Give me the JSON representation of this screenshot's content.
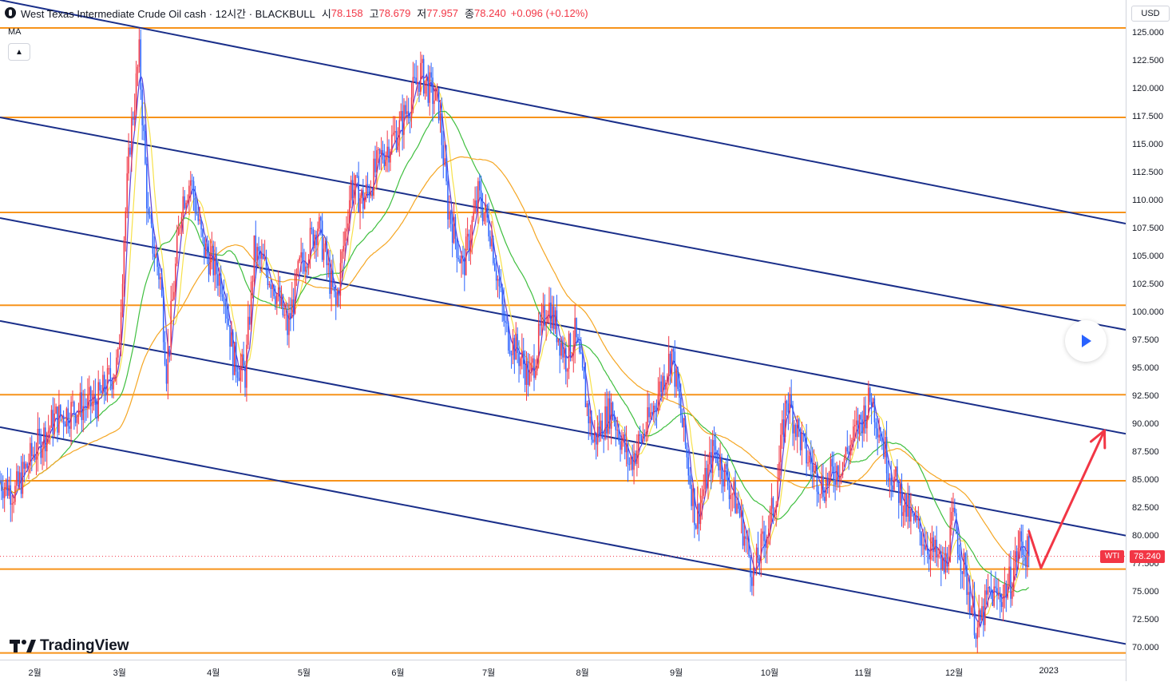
{
  "header": {
    "title": "West Texas Intermediate Crude Oil cash · 12시간 · BLACKBULL",
    "open_key": "시",
    "open": "78.158",
    "high_key": "고",
    "high": "78.679",
    "low_key": "저",
    "low": "77.957",
    "close_key": "종",
    "close": "78.240",
    "change": "+0.096 (+0.12%)"
  },
  "indicator_label": "MA",
  "currency": "USD",
  "symbol_tag": "WTI",
  "last_price_label": "78.240",
  "brand": "TradingView",
  "chart_data": {
    "type": "candlestick",
    "symbol": "WTI",
    "interval": "12시간",
    "last_price": 78.24,
    "y_range": [
      69,
      128
    ],
    "y_ticks": [
      70,
      72.5,
      75,
      77.5,
      80,
      82.5,
      85,
      87.5,
      90,
      92.5,
      95,
      97.5,
      100,
      102.5,
      105,
      107.5,
      110,
      112.5,
      115,
      117.5,
      120,
      122.5,
      125
    ],
    "y_tick_labels": [
      "70.000",
      "72.500",
      "75.000",
      "77.500",
      "80.000",
      "82.500",
      "85.000",
      "87.500",
      "90.000",
      "92.500",
      "95.000",
      "97.500",
      "100.000",
      "102.500",
      "105.000",
      "107.500",
      "110.000",
      "112.500",
      "115.000",
      "117.500",
      "120.000",
      "122.500",
      "125.000"
    ],
    "x_range": [
      "2022-01-20",
      "2023-01-27"
    ],
    "x_ticks": [
      {
        "label": "2월",
        "date": "2022-02-01"
      },
      {
        "label": "3월",
        "date": "2022-03-01"
      },
      {
        "label": "4월",
        "date": "2022-04-01"
      },
      {
        "label": "5월",
        "date": "2022-05-01"
      },
      {
        "label": "6월",
        "date": "2022-06-01"
      },
      {
        "label": "7월",
        "date": "2022-07-01"
      },
      {
        "label": "8월",
        "date": "2022-08-01"
      },
      {
        "label": "9월",
        "date": "2022-09-01"
      },
      {
        "label": "10월",
        "date": "2022-10-01"
      },
      {
        "label": "11월",
        "date": "2022-11-01"
      },
      {
        "label": "12월",
        "date": "2022-12-01"
      },
      {
        "label": "2023",
        "date": "2023-01-01"
      }
    ],
    "price_path": [
      [
        "2022-01-20",
        85.0
      ],
      [
        "2022-01-25",
        84.0
      ],
      [
        "2022-01-31",
        87.5
      ],
      [
        "2022-02-07",
        90.5
      ],
      [
        "2022-02-14",
        91.5
      ],
      [
        "2022-02-21",
        92.0
      ],
      [
        "2022-02-24",
        93.5
      ],
      [
        "2022-02-28",
        95.5
      ],
      [
        "2022-03-02",
        107.0
      ],
      [
        "2022-03-04",
        115.5
      ],
      [
        "2022-03-07",
        123.0
      ],
      [
        "2022-03-10",
        108.0
      ],
      [
        "2022-03-14",
        103.0
      ],
      [
        "2022-03-16",
        95.0
      ],
      [
        "2022-03-21",
        110.0
      ],
      [
        "2022-03-24",
        112.0
      ],
      [
        "2022-03-28",
        106.0
      ],
      [
        "2022-04-04",
        102.5
      ],
      [
        "2022-04-07",
        96.0
      ],
      [
        "2022-04-11",
        94.5
      ],
      [
        "2022-04-14",
        105.5
      ],
      [
        "2022-04-20",
        103.0
      ],
      [
        "2022-04-25",
        98.5
      ],
      [
        "2022-04-29",
        104.0
      ],
      [
        "2022-05-05",
        108.0
      ],
      [
        "2022-05-11",
        100.5
      ],
      [
        "2022-05-16",
        111.5
      ],
      [
        "2022-05-20",
        110.0
      ],
      [
        "2022-05-26",
        114.0
      ],
      [
        "2022-06-01",
        116.5
      ],
      [
        "2022-06-08",
        121.5
      ],
      [
        "2022-06-14",
        118.5
      ],
      [
        "2022-06-17",
        109.5
      ],
      [
        "2022-06-22",
        104.0
      ],
      [
        "2022-06-27",
        110.5
      ],
      [
        "2022-07-01",
        107.5
      ],
      [
        "2022-07-06",
        98.5
      ],
      [
        "2022-07-12",
        95.5
      ],
      [
        "2022-07-14",
        94.0
      ],
      [
        "2022-07-20",
        101.0
      ],
      [
        "2022-07-26",
        96.0
      ],
      [
        "2022-07-29",
        98.0
      ],
      [
        "2022-08-04",
        88.5
      ],
      [
        "2022-08-10",
        91.5
      ],
      [
        "2022-08-16",
        86.5
      ],
      [
        "2022-08-22",
        90.0
      ],
      [
        "2022-08-30",
        96.5
      ],
      [
        "2022-09-07",
        81.5
      ],
      [
        "2022-09-13",
        88.0
      ],
      [
        "2022-09-21",
        82.5
      ],
      [
        "2022-09-26",
        76.5
      ],
      [
        "2022-10-03",
        83.0
      ],
      [
        "2022-10-07",
        92.5
      ],
      [
        "2022-10-13",
        87.5
      ],
      [
        "2022-10-19",
        84.5
      ],
      [
        "2022-10-26",
        87.0
      ],
      [
        "2022-11-04",
        92.5
      ],
      [
        "2022-11-10",
        86.0
      ],
      [
        "2022-11-17",
        81.5
      ],
      [
        "2022-11-21",
        80.0
      ],
      [
        "2022-11-28",
        77.0
      ],
      [
        "2022-12-01",
        81.5
      ],
      [
        "2022-12-05",
        76.5
      ],
      [
        "2022-12-09",
        71.5
      ],
      [
        "2022-12-13",
        75.0
      ],
      [
        "2022-12-16",
        74.5
      ],
      [
        "2022-12-20",
        76.0
      ],
      [
        "2022-12-23",
        79.5
      ],
      [
        "2022-12-26",
        78.24
      ]
    ],
    "horizontal_levels": [
      125.5,
      117.5,
      109.0,
      100.7,
      92.7,
      85.0,
      77.1,
      69.6
    ],
    "channel_lines": [
      {
        "start": [
          "2022-01-20",
          128.0
        ],
        "end": [
          "2023-01-27",
          108.0
        ]
      },
      {
        "start": [
          "2022-01-20",
          117.5
        ],
        "end": [
          "2023-01-27",
          98.5
        ]
      },
      {
        "start": [
          "2022-01-20",
          108.5
        ],
        "end": [
          "2023-01-27",
          89.2
        ]
      },
      {
        "start": [
          "2022-01-20",
          99.3
        ],
        "end": [
          "2023-01-27",
          80.1
        ]
      },
      {
        "start": [
          "2022-01-20",
          89.8
        ],
        "end": [
          "2023-01-27",
          70.4
        ]
      }
    ],
    "projection_arrow": [
      [
        "2022-12-26",
        80.5
      ],
      [
        "2022-12-30",
        77.2
      ],
      [
        "2023-01-20",
        89.5
      ]
    ],
    "moving_averages": [
      {
        "color": "#f7e14a",
        "period": 10
      },
      {
        "color": "#5b3fd6",
        "period": 5
      },
      {
        "color": "#3fbf3f",
        "period": 40
      },
      {
        "color": "#f5a623",
        "period": 80
      }
    ],
    "colors": {
      "up": "#f23645",
      "down": "#2962ff",
      "level": "#f7931a",
      "channel": "#1a2f8a",
      "arrow": "#f23645"
    }
  }
}
